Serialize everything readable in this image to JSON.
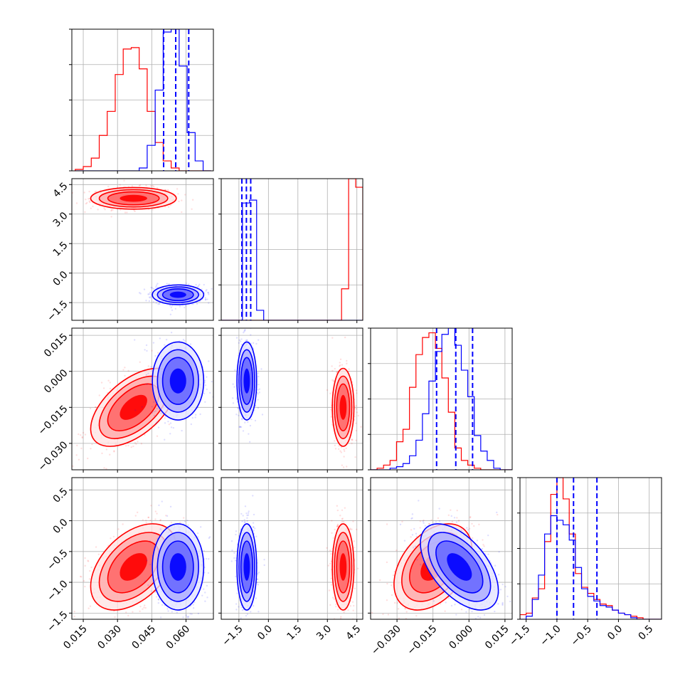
{
  "chart_data": {
    "type": "corner",
    "parameters": [
      {
        "range": [
          0.01,
          0.072
        ],
        "ticks": [
          0.015,
          0.03,
          0.045,
          0.06
        ],
        "tick_labels": [
          "0.015",
          "0.030",
          "0.045",
          "0.060"
        ]
      },
      {
        "range": [
          -2.4,
          4.8
        ],
        "ticks": [
          -1.5,
          0.0,
          1.5,
          3.0,
          4.5
        ],
        "tick_labels": [
          "−1.5",
          "0.0",
          "1.5",
          "3.0",
          "4.5"
        ]
      },
      {
        "range": [
          -0.041,
          0.018
        ],
        "ticks": [
          -0.03,
          -0.015,
          0.0,
          0.015
        ],
        "tick_labels": [
          "−0.030",
          "−0.015",
          "0.000",
          "0.015"
        ]
      },
      {
        "range": [
          -1.6,
          0.7
        ],
        "ticks": [
          -1.5,
          -1.0,
          -0.5,
          0.0,
          0.5
        ],
        "tick_labels": [
          "−1.5",
          "−1.0",
          "−0.5",
          "0.0",
          "0.5"
        ]
      }
    ],
    "series": [
      {
        "color": "#ff0000",
        "mean": [
          0.037,
          3.8,
          -0.015,
          -0.75
        ],
        "std": [
          0.0075,
          0.22,
          0.0065,
          0.28
        ],
        "correlation": {
          "0-1": 0.0,
          "0-2": 0.55,
          "0-3": 0.45,
          "1-2": 0.0,
          "1-3": 0.0,
          "2-3": 0.4
        }
      },
      {
        "color": "#0000ff",
        "mean": [
          0.0565,
          -1.1,
          -0.004,
          -0.75
        ],
        "std": [
          0.0045,
          0.2,
          0.0065,
          0.28
        ],
        "correlation": {
          "0-1": 0.0,
          "0-2": 0.0,
          "0-3": 0.0,
          "1-2": 0.0,
          "1-3": 0.0,
          "2-3": -0.55
        }
      }
    ],
    "quantile_lines": {
      "color": "#0000ff",
      "values": [
        [
          0.0502,
          0.0555,
          0.0612
        ],
        [
          -1.35,
          -1.12,
          -0.9
        ],
        [
          -0.0135,
          -0.0055,
          0.0015
        ],
        [
          -1.0,
          -0.73,
          -0.35
        ]
      ]
    },
    "histograms": [
      {
        "bin_start": 0.0115,
        "bin_width": 0.0035,
        "red": [
          0.01,
          0.03,
          0.09,
          0.25,
          0.42,
          0.68,
          0.86,
          0.87,
          0.72,
          0.42,
          0.2,
          0.07,
          0.02,
          0.0,
          0.0,
          0.0,
          0.0
        ],
        "blue": [
          0.0,
          0.0,
          0.0,
          0.0,
          0.0,
          0.0,
          0.0,
          0.0,
          0.02,
          0.18,
          0.57,
          0.98,
          1.0,
          0.74,
          0.27,
          0.07,
          0.0
        ]
      },
      {
        "bin_start": -2.4,
        "bin_width": 0.36,
        "red": [
          0.0,
          0.0,
          0.0,
          0.0,
          0.0,
          0.0,
          0.0,
          0.0,
          0.0,
          0.0,
          0.0,
          0.0,
          0.0,
          0.0,
          0.0,
          0.0,
          0.0,
          0.22,
          0.99,
          0.93,
          0.0
        ],
        "blue": [
          0.0,
          0.0,
          0.0,
          0.82,
          0.84,
          0.07,
          0.0,
          0.0,
          0.0,
          0.0,
          0.0,
          0.0,
          0.0,
          0.0,
          0.0,
          0.0,
          0.0,
          0.0,
          0.0,
          0.0,
          0.0
        ]
      },
      {
        "bin_start": -0.041,
        "bin_width": 0.0027,
        "red": [
          0.0,
          0.01,
          0.03,
          0.06,
          0.18,
          0.26,
          0.53,
          0.74,
          0.85,
          0.88,
          0.78,
          0.59,
          0.37,
          0.14,
          0.06,
          0.03,
          0.01,
          0.0,
          0.0,
          0.0,
          0.0,
          0.0
        ],
        "blue": [
          0.0,
          0.0,
          0.0,
          0.01,
          0.02,
          0.04,
          0.09,
          0.19,
          0.36,
          0.57,
          0.76,
          0.87,
          0.91,
          0.8,
          0.64,
          0.47,
          0.22,
          0.12,
          0.06,
          0.01,
          0.0,
          0.0
        ]
      },
      {
        "bin_start": -1.6,
        "bin_width": 0.1,
        "red": [
          0.03,
          0.04,
          0.14,
          0.2,
          0.51,
          0.82,
          0.93,
          0.79,
          0.56,
          0.3,
          0.21,
          0.17,
          0.13,
          0.1,
          0.09,
          0.06,
          0.04,
          0.03,
          0.02,
          0.01,
          0.0,
          0.0,
          0.0
        ],
        "blue": [
          0.0,
          0.02,
          0.13,
          0.29,
          0.56,
          0.68,
          0.65,
          0.62,
          0.52,
          0.34,
          0.2,
          0.15,
          0.12,
          0.09,
          0.08,
          0.06,
          0.04,
          0.03,
          0.01,
          0.0,
          0.0,
          0.0,
          0.0
        ]
      }
    ],
    "grid": true,
    "contours": true,
    "scatter_points": true
  }
}
